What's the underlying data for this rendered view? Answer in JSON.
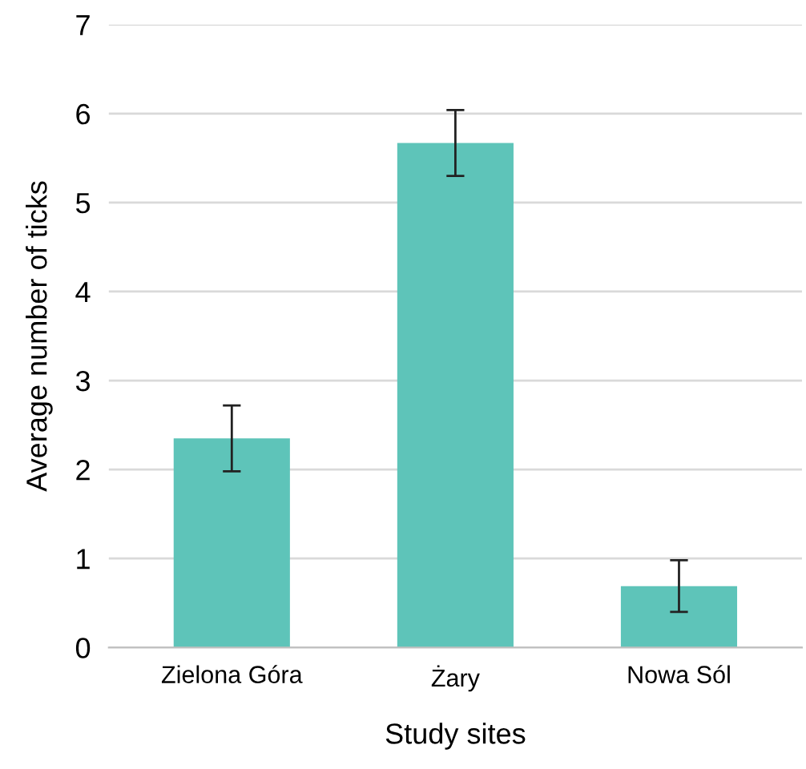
{
  "chart_data": {
    "type": "bar",
    "xlabel": "Study sites",
    "ylabel": "Average number of ticks",
    "categories": [
      "Zielona Góra",
      "Żary",
      "Nowa Sól"
    ],
    "series": [
      {
        "color": "#5ec4b9",
        "values": [
          2.35,
          5.67,
          0.69
        ],
        "errors": [
          0.37,
          0.37,
          0.29
        ]
      }
    ],
    "ylim": [
      0,
      7
    ],
    "yticks": [
      0,
      1,
      2,
      3,
      4,
      5,
      6,
      7
    ],
    "grid": "y",
    "legend": false
  }
}
